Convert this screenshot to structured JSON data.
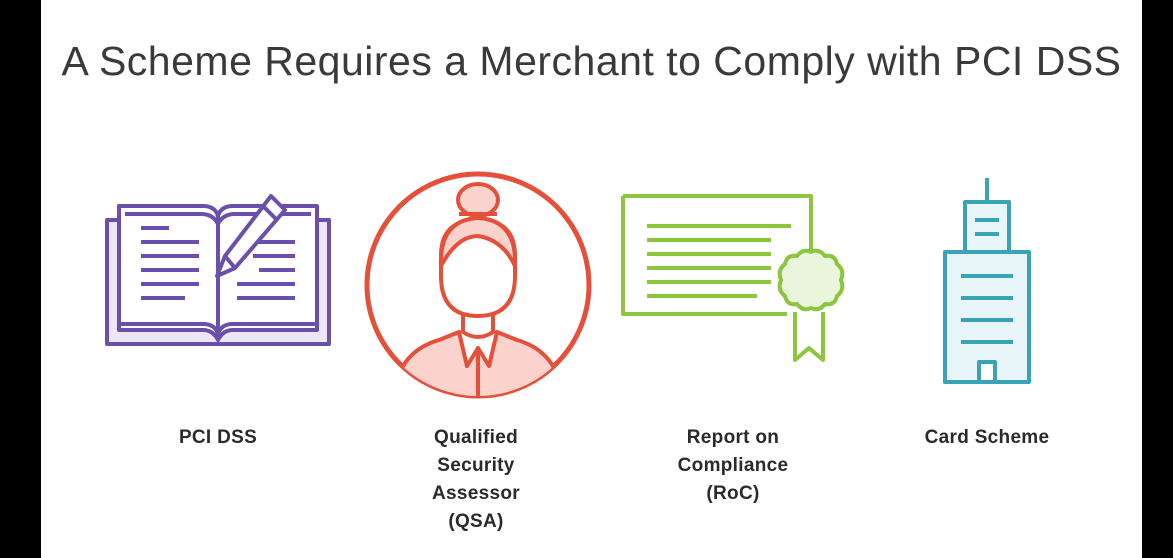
{
  "slide": {
    "title": "A Scheme Requires a Merchant to Comply with PCI DSS",
    "items": [
      {
        "label": "PCI DSS",
        "icon": "book-pencil-icon",
        "color": "#6b4fad"
      },
      {
        "label": "Qualified Security Assessor (QSA)",
        "icon": "person-icon",
        "color": "#e4503a"
      },
      {
        "label": "Report on Compliance (RoC)",
        "icon": "certificate-icon",
        "color": "#8cc63f"
      },
      {
        "label": "Card Scheme",
        "icon": "building-icon",
        "color": "#3aa3b8"
      }
    ]
  }
}
